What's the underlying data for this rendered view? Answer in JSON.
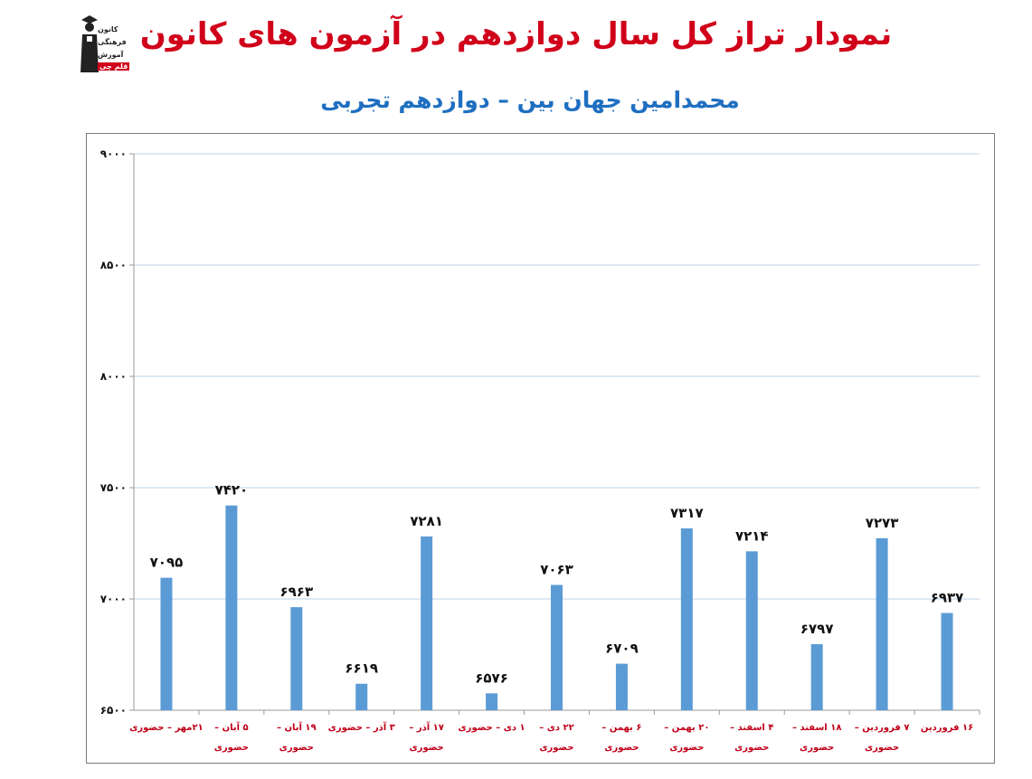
{
  "header": {
    "title": "نمودار تراز کل سال دوازدهم در آزمون های کانون",
    "subtitle": "محمدامین جهان بین – دوازدهم تجربی"
  },
  "logo": {
    "icon": "graduate-figure-icon",
    "lines": [
      "کانون",
      "فرهنگی",
      "آموزش"
    ],
    "badge": "قلم چی"
  },
  "colors": {
    "title": "#d0001a",
    "subtitle": "#1f6fc0",
    "bar": "#5b9bd5",
    "gridline": "#bcd3ea",
    "category_label": "#c00018"
  },
  "chart_data": {
    "type": "bar",
    "title": "نمودار تراز کل سال دوازدهم در آزمون های کانون",
    "subtitle": "محمدامین جهان بین – دوازدهم تجربی",
    "categories": [
      [
        "۲۱مهر – حضوری"
      ],
      [
        "۵ آبان –",
        "حضوری"
      ],
      [
        "۱۹ آبان –",
        "حضوری"
      ],
      [
        "۳ آذر – حضوری"
      ],
      [
        "۱۷ آذر –",
        "حضوری"
      ],
      [
        "۱ دی – حضوری"
      ],
      [
        "۲۲ دی –",
        "حضوری"
      ],
      [
        "۶ بهمن –",
        "حضوری"
      ],
      [
        "۲۰ بهمن –",
        "حضوری"
      ],
      [
        "۴ اسفند –",
        "حضوری"
      ],
      [
        "۱۸ اسفند –",
        "حضوری"
      ],
      [
        "۷ فروردین –",
        "حضوری"
      ],
      [
        "۱۶ فروردین"
      ]
    ],
    "values": [
      7095,
      7420,
      6963,
      6619,
      7281,
      6576,
      7063,
      6709,
      7317,
      7214,
      6797,
      7273,
      6937
    ],
    "data_labels": [
      "۷۰۹۵",
      "۷۴۲۰",
      "۶۹۶۳",
      "۶۶۱۹",
      "۷۲۸۱",
      "۶۵۷۶",
      "۷۰۶۳",
      "۶۷۰۹",
      "۷۳۱۷",
      "۷۲۱۴",
      "۶۷۹۷",
      "۷۲۷۳",
      "۶۹۳۷"
    ],
    "ylim": [
      6500,
      9000
    ],
    "yticks": [
      6500,
      7000,
      7500,
      8000,
      8500,
      9000
    ],
    "ytick_labels": [
      "۶۵۰۰",
      "۷۰۰۰",
      "۷۵۰۰",
      "۸۰۰۰",
      "۸۵۰۰",
      "۹۰۰۰"
    ],
    "grid": true,
    "legend": "none"
  }
}
